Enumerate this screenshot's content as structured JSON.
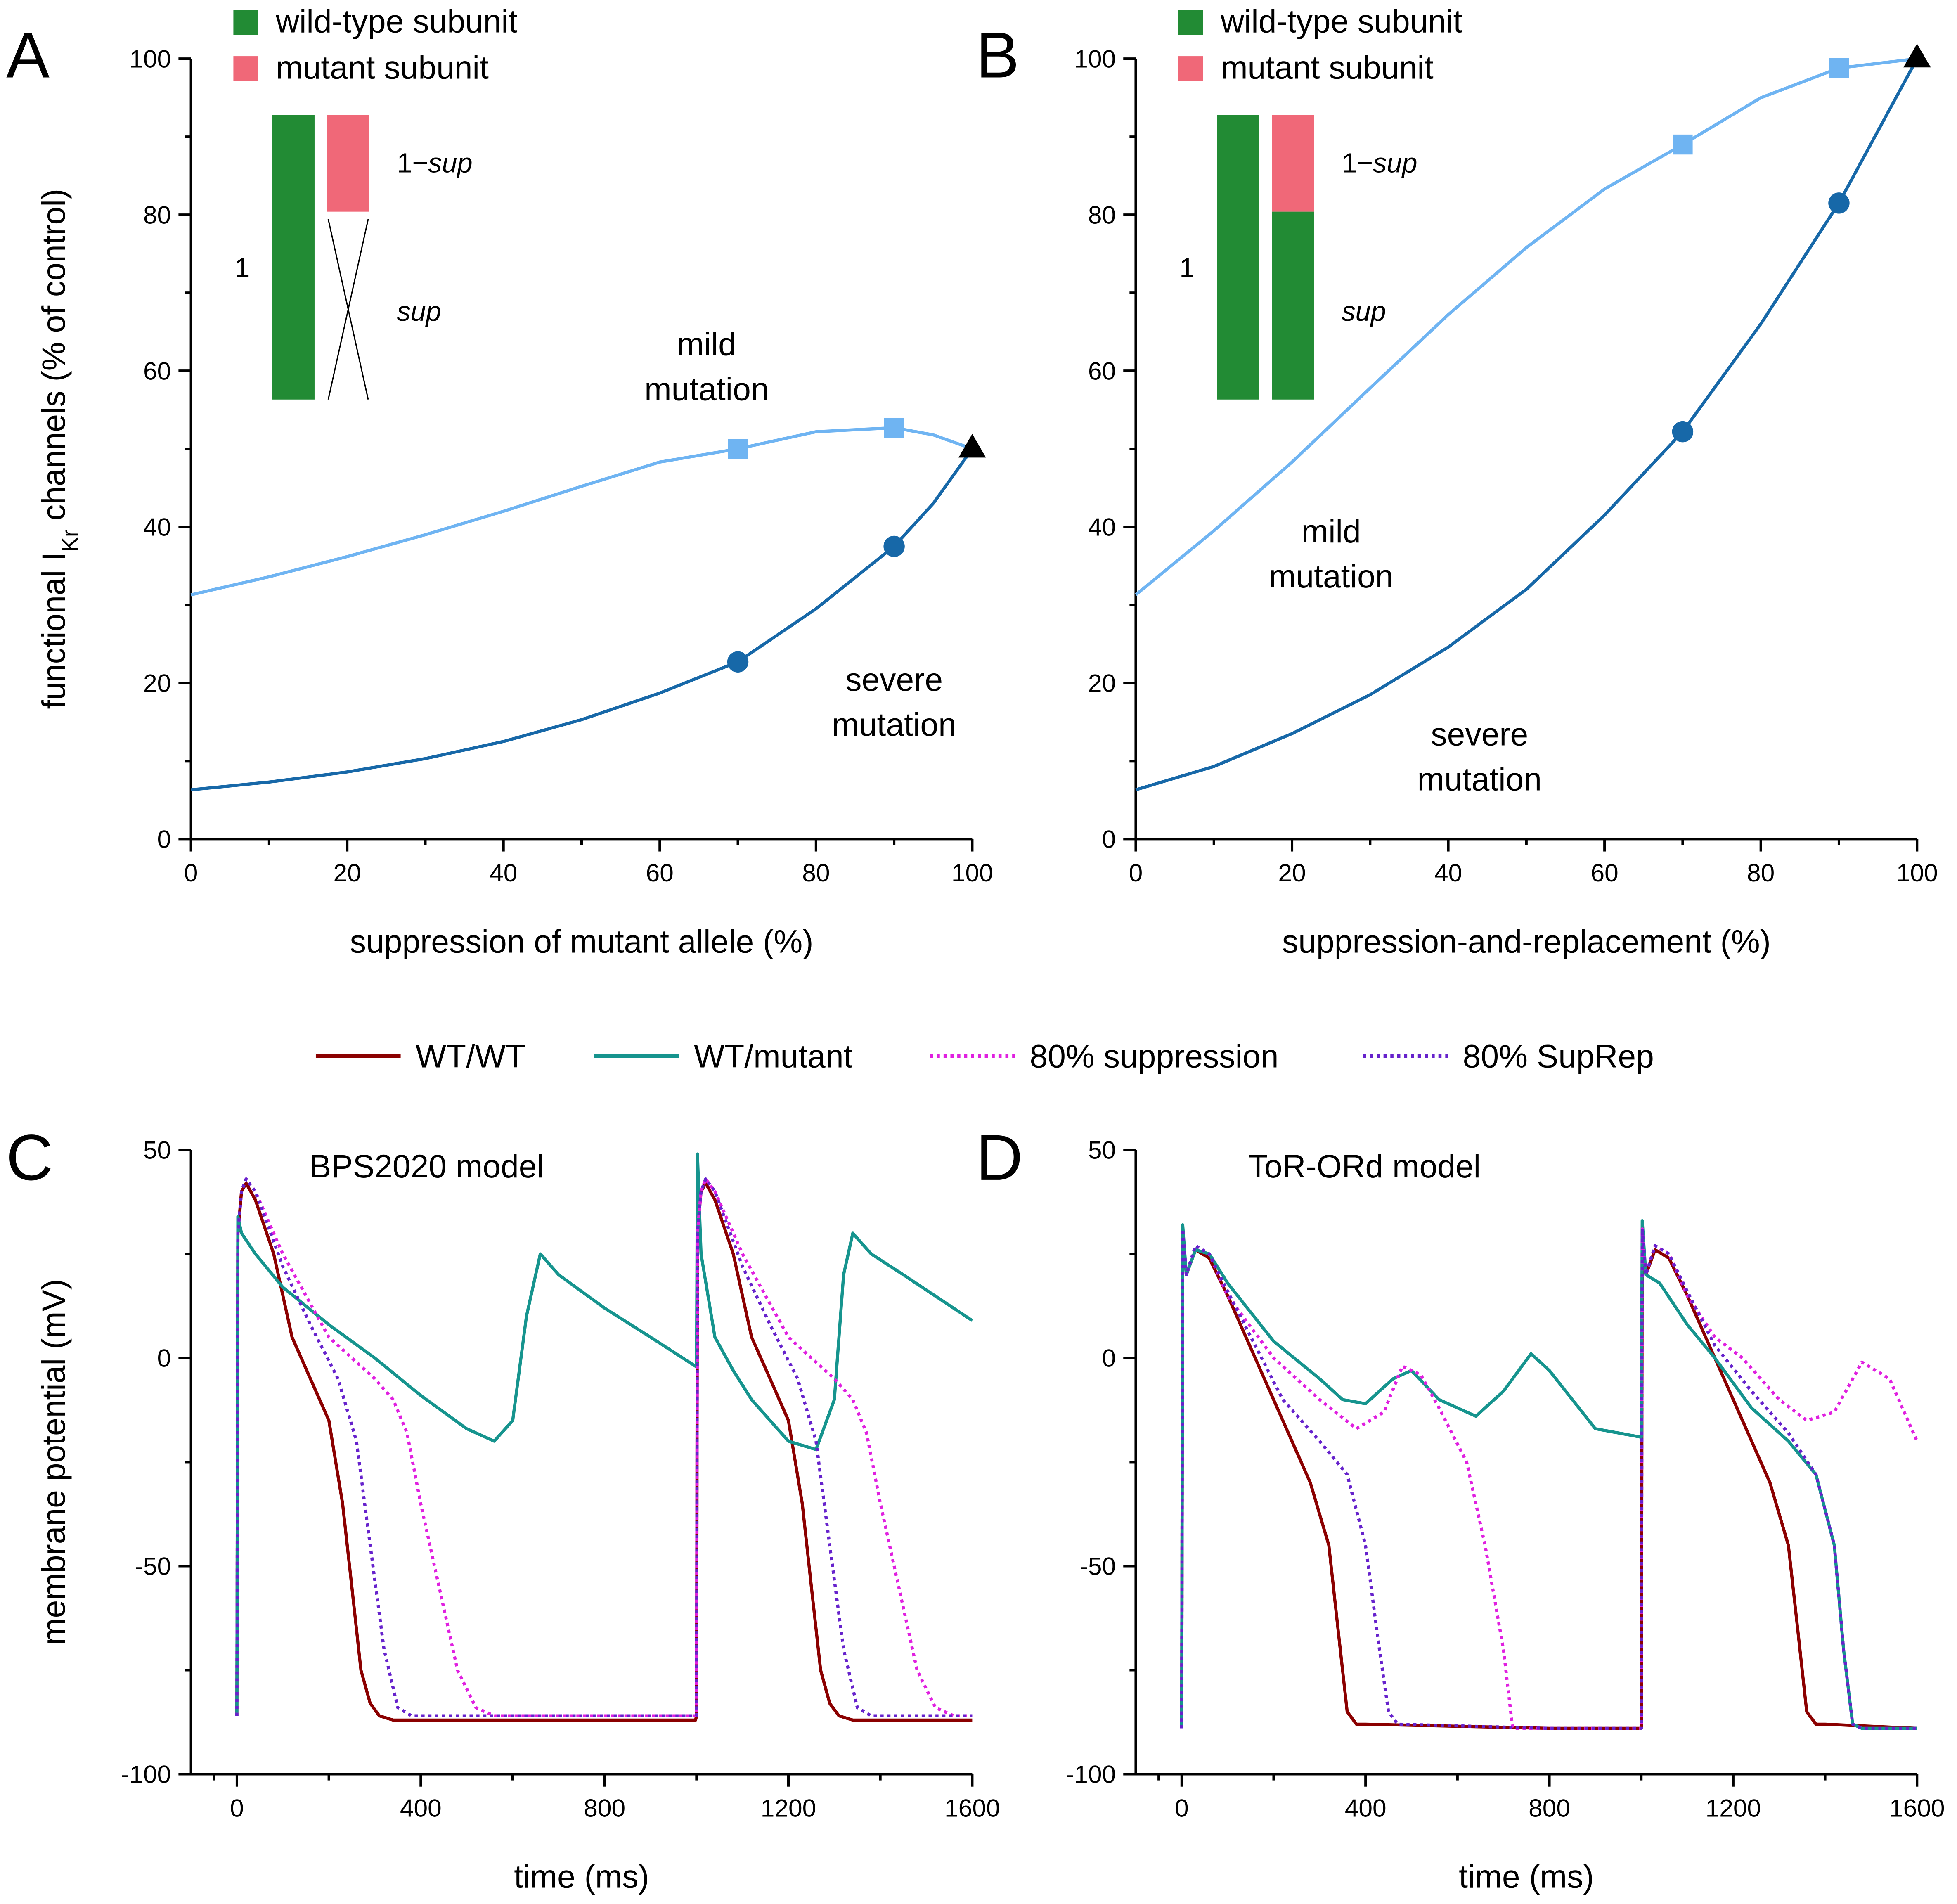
{
  "chart_data": [
    {
      "id": "A",
      "type": "line",
      "panel_letter": "A",
      "xlabel": "suppression of mutant allele (%)",
      "ylabel": "functional I_Kr channels (% of control)",
      "ylabel_main": "functional I",
      "ylabel_sub": "Kr",
      "ylabel_rest": " channels (% of control)",
      "xlim": [
        0,
        100
      ],
      "ylim": [
        0,
        100
      ],
      "xticks": [
        0,
        20,
        40,
        60,
        80,
        100
      ],
      "yticks": [
        0,
        20,
        40,
        60,
        80,
        100
      ],
      "grid": false,
      "legend": [
        {
          "label": "wild-type subunit",
          "color": "#228b34"
        },
        {
          "label": "mutant subunit",
          "color": "#f06878"
        }
      ],
      "inset": {
        "left_label": "1",
        "top_label_prefix": "1−",
        "top_label_italic": "sup",
        "bottom_label": "sup",
        "mutant_fraction_shown": 0.2,
        "crossed_out": true
      },
      "annotations": [
        {
          "lines": [
            "mild",
            "mutation"
          ],
          "at": [
            66,
            62
          ]
        },
        {
          "lines": [
            "severe",
            "mutation"
          ],
          "at": [
            90,
            19
          ]
        }
      ],
      "series": [
        {
          "name": "mild mutation",
          "color": "#6fb4f2",
          "marker": "square",
          "x": [
            0,
            10,
            20,
            30,
            40,
            50,
            60,
            70,
            80,
            90,
            95,
            100
          ],
          "y": [
            31.3,
            33.6,
            36.2,
            39.0,
            42.0,
            45.2,
            48.3,
            50.0,
            52.2,
            52.7,
            51.8,
            50.0
          ],
          "marker_points": [
            [
              70,
              50.0
            ],
            [
              90,
              52.7
            ]
          ]
        },
        {
          "name": "severe mutation",
          "color": "#1768a8",
          "marker": "circle",
          "x": [
            0,
            10,
            20,
            30,
            40,
            50,
            60,
            70,
            80,
            90,
            95,
            100
          ],
          "y": [
            6.3,
            7.3,
            8.6,
            10.3,
            12.5,
            15.3,
            18.7,
            22.7,
            29.5,
            37.5,
            43.0,
            50.0
          ],
          "marker_points": [
            [
              70,
              22.7
            ],
            [
              90,
              37.5
            ]
          ]
        }
      ],
      "end_marker": {
        "shape": "triangle",
        "color": "#000000",
        "x": 100,
        "y": 50
      }
    },
    {
      "id": "B",
      "type": "line",
      "panel_letter": "B",
      "xlabel": "suppression-and-replacement (%)",
      "ylabel": "",
      "xlim": [
        0,
        100
      ],
      "ylim": [
        0,
        100
      ],
      "xticks": [
        0,
        20,
        40,
        60,
        80,
        100
      ],
      "yticks": [
        0,
        20,
        40,
        60,
        80,
        100
      ],
      "grid": false,
      "legend": [
        {
          "label": "wild-type subunit",
          "color": "#228b34"
        },
        {
          "label": "mutant subunit",
          "color": "#f06878"
        }
      ],
      "inset": {
        "left_label": "1",
        "top_label_prefix": "1−",
        "top_label_italic": "sup",
        "bottom_label": "sup",
        "mutant_fraction_shown": 0.2,
        "crossed_out": false
      },
      "annotations": [
        {
          "lines": [
            "mild",
            "mutation"
          ],
          "at": [
            25,
            38
          ]
        },
        {
          "lines": [
            "severe",
            "mutation"
          ],
          "at": [
            44,
            12
          ]
        }
      ],
      "series": [
        {
          "name": "mild mutation",
          "color": "#6fb4f2",
          "marker": "square",
          "x": [
            0,
            10,
            20,
            30,
            40,
            50,
            60,
            70,
            80,
            90,
            100
          ],
          "y": [
            31.3,
            39.5,
            48.3,
            57.8,
            67.2,
            75.8,
            83.3,
            89.0,
            95.0,
            98.8,
            100
          ],
          "marker_points": [
            [
              70,
              89.0
            ],
            [
              90,
              98.8
            ]
          ]
        },
        {
          "name": "severe mutation",
          "color": "#1768a8",
          "marker": "circle",
          "x": [
            0,
            10,
            20,
            30,
            40,
            50,
            60,
            70,
            80,
            90,
            100
          ],
          "y": [
            6.3,
            9.3,
            13.5,
            18.5,
            24.6,
            32.0,
            41.5,
            52.2,
            66.0,
            81.5,
            100
          ],
          "marker_points": [
            [
              70,
              52.2
            ],
            [
              90,
              81.5
            ]
          ]
        }
      ],
      "end_marker": {
        "shape": "triangle",
        "color": "#000000",
        "x": 100,
        "y": 100
      }
    },
    {
      "id": "C",
      "type": "line",
      "panel_letter": "C",
      "title": "BPS2020 model",
      "xlabel": "time (ms)",
      "ylabel": "membrane potential (mV)",
      "xlim": [
        -100,
        1600
      ],
      "ylim": [
        -100,
        50
      ],
      "xticks": [
        0,
        400,
        800,
        1200,
        1600
      ],
      "yticks": [
        -100,
        -50,
        0,
        50
      ],
      "grid": false,
      "series": [
        {
          "name": "WT/WT",
          "color": "#8b0000",
          "style": "solid",
          "x": [
            0,
            2,
            10,
            20,
            40,
            80,
            120,
            160,
            200,
            230,
            250,
            270,
            290,
            310,
            340,
            400,
            800,
            998,
            1000,
            1002,
            1010,
            1020,
            1040,
            1080,
            1120,
            1160,
            1200,
            1230,
            1250,
            1270,
            1290,
            1310,
            1340,
            1400,
            1600
          ],
          "y": [
            -86,
            30,
            40,
            42,
            38,
            25,
            5,
            -5,
            -15,
            -35,
            -55,
            -75,
            -83,
            -86,
            -87,
            -87,
            -87,
            -87,
            -86,
            30,
            40,
            42,
            38,
            25,
            5,
            -5,
            -15,
            -35,
            -55,
            -75,
            -83,
            -86,
            -87,
            -87,
            -87
          ]
        },
        {
          "name": "WT/mutant",
          "color": "#16948e",
          "style": "solid",
          "x": [
            0,
            2,
            10,
            40,
            100,
            200,
            300,
            400,
            500,
            560,
            600,
            630,
            660,
            700,
            800,
            900,
            998,
            1000,
            1002,
            1010,
            1040,
            1080,
            1120,
            1200,
            1260,
            1300,
            1320,
            1340,
            1380,
            1450,
            1600
          ],
          "y": [
            -86,
            34,
            30,
            25,
            17,
            8,
            0,
            -9,
            -17,
            -20,
            -15,
            10,
            25,
            20,
            12,
            5,
            -2,
            -2,
            49,
            25,
            5,
            -3,
            -10,
            -20,
            -22,
            -10,
            20,
            30,
            25,
            20,
            9
          ]
        },
        {
          "name": "80% suppression",
          "color": "#e020e0",
          "style": "dotted",
          "x": [
            0,
            2,
            10,
            20,
            40,
            100,
            200,
            300,
            340,
            370,
            400,
            440,
            480,
            520,
            560,
            600,
            800,
            998,
            1000,
            1002,
            1010,
            1020,
            1040,
            1100,
            1200,
            1300,
            1340,
            1370,
            1400,
            1440,
            1480,
            1520,
            1560,
            1600
          ],
          "y": [
            -86,
            30,
            40,
            43,
            40,
            25,
            5,
            -5,
            -10,
            -18,
            -35,
            -55,
            -75,
            -84,
            -86,
            -86,
            -86,
            -86,
            -86,
            30,
            40,
            43,
            40,
            25,
            5,
            -5,
            -10,
            -18,
            -35,
            -55,
            -75,
            -84,
            -86,
            -86
          ]
        },
        {
          "name": "80% SupRep",
          "color": "#6622cc",
          "style": "dotted",
          "x": [
            0,
            2,
            10,
            20,
            40,
            100,
            160,
            220,
            260,
            290,
            320,
            350,
            380,
            420,
            800,
            998,
            1000,
            1002,
            1010,
            1020,
            1040,
            1100,
            1160,
            1220,
            1260,
            1290,
            1320,
            1350,
            1380,
            1420,
            1600
          ],
          "y": [
            -86,
            30,
            40,
            43,
            40,
            22,
            8,
            -5,
            -20,
            -45,
            -70,
            -84,
            -86,
            -86,
            -86,
            -86,
            -86,
            30,
            40,
            43,
            40,
            22,
            8,
            -5,
            -20,
            -45,
            -70,
            -84,
            -86,
            -86,
            -86
          ]
        }
      ]
    },
    {
      "id": "D",
      "type": "line",
      "panel_letter": "D",
      "title": "ToR-ORd model",
      "xlabel": "time (ms)",
      "ylabel": "",
      "xlim": [
        -100,
        1600
      ],
      "ylim": [
        -100,
        50
      ],
      "xticks": [
        0,
        400,
        800,
        1200,
        1600
      ],
      "yticks": [
        -100,
        -50,
        0,
        50
      ],
      "grid": false,
      "series": [
        {
          "name": "WT/WT",
          "color": "#8b0000",
          "style": "solid",
          "x": [
            0,
            2,
            10,
            30,
            60,
            100,
            160,
            220,
            280,
            320,
            340,
            360,
            380,
            400,
            800,
            998,
            1000,
            1002,
            1010,
            1030,
            1060,
            1100,
            1160,
            1220,
            1280,
            1320,
            1340,
            1360,
            1380,
            1400,
            1600
          ],
          "y": [
            -89,
            31,
            20,
            26,
            24,
            15,
            0,
            -15,
            -30,
            -45,
            -65,
            -85,
            -88,
            -88,
            -89,
            -89,
            -89,
            31,
            20,
            26,
            24,
            15,
            0,
            -15,
            -30,
            -45,
            -65,
            -85,
            -88,
            -88,
            -89
          ]
        },
        {
          "name": "WT/mutant",
          "color": "#16948e",
          "style": "solid",
          "x": [
            0,
            2,
            10,
            30,
            60,
            100,
            200,
            300,
            350,
            400,
            460,
            500,
            560,
            640,
            700,
            760,
            800,
            900,
            998,
            1000,
            1002,
            1010,
            1040,
            1100,
            1160,
            1240,
            1320,
            1380,
            1420,
            1440,
            1460,
            1480,
            1600
          ],
          "y": [
            -89,
            32,
            20,
            26,
            25,
            18,
            4,
            -5,
            -10,
            -11,
            -5,
            -3,
            -10,
            -14,
            -8,
            1,
            -3,
            -17,
            -19,
            -19,
            33,
            20,
            18,
            8,
            0,
            -12,
            -20,
            -28,
            -45,
            -70,
            -88,
            -89,
            -89
          ]
        },
        {
          "name": "80% suppression",
          "color": "#e020e0",
          "style": "dotted",
          "x": [
            0,
            2,
            10,
            30,
            60,
            100,
            200,
            300,
            380,
            440,
            480,
            520,
            560,
            620,
            660,
            700,
            720,
            740,
            800,
            998,
            1000,
            1002,
            1010,
            1030,
            1060,
            1100,
            1160,
            1220,
            1300,
            1360,
            1420,
            1480,
            1540,
            1600
          ],
          "y": [
            -89,
            31,
            20,
            27,
            25,
            15,
            0,
            -10,
            -17,
            -13,
            -2,
            -4,
            -12,
            -25,
            -45,
            -70,
            -89,
            -89,
            -89,
            -89,
            -89,
            31,
            20,
            27,
            25,
            15,
            5,
            0,
            -10,
            -15,
            -13,
            -1,
            -5,
            -20
          ]
        },
        {
          "name": "80% SupRep",
          "color": "#6622cc",
          "style": "dotted",
          "x": [
            0,
            2,
            10,
            30,
            60,
            100,
            160,
            220,
            300,
            360,
            400,
            430,
            450,
            470,
            800,
            998,
            1000,
            1002,
            1010,
            1030,
            1060,
            1100,
            1160,
            1240,
            1320,
            1380,
            1420,
            1440,
            1460,
            1480,
            1600
          ],
          "y": [
            -89,
            31,
            20,
            27,
            25,
            16,
            3,
            -10,
            -20,
            -28,
            -45,
            -70,
            -85,
            -88,
            -89,
            -89,
            -89,
            31,
            20,
            27,
            25,
            16,
            3,
            -8,
            -18,
            -28,
            -45,
            -70,
            -88,
            -89,
            -89
          ]
        }
      ]
    }
  ],
  "shared_legend": [
    {
      "label": "WT/WT",
      "color": "#8b0000",
      "style": "solid"
    },
    {
      "label": "WT/mutant",
      "color": "#16948e",
      "style": "solid"
    },
    {
      "label": "80% suppression",
      "color": "#e020e0",
      "style": "dotted"
    },
    {
      "label": "80% SupRep",
      "color": "#6622cc",
      "style": "dotted"
    }
  ]
}
